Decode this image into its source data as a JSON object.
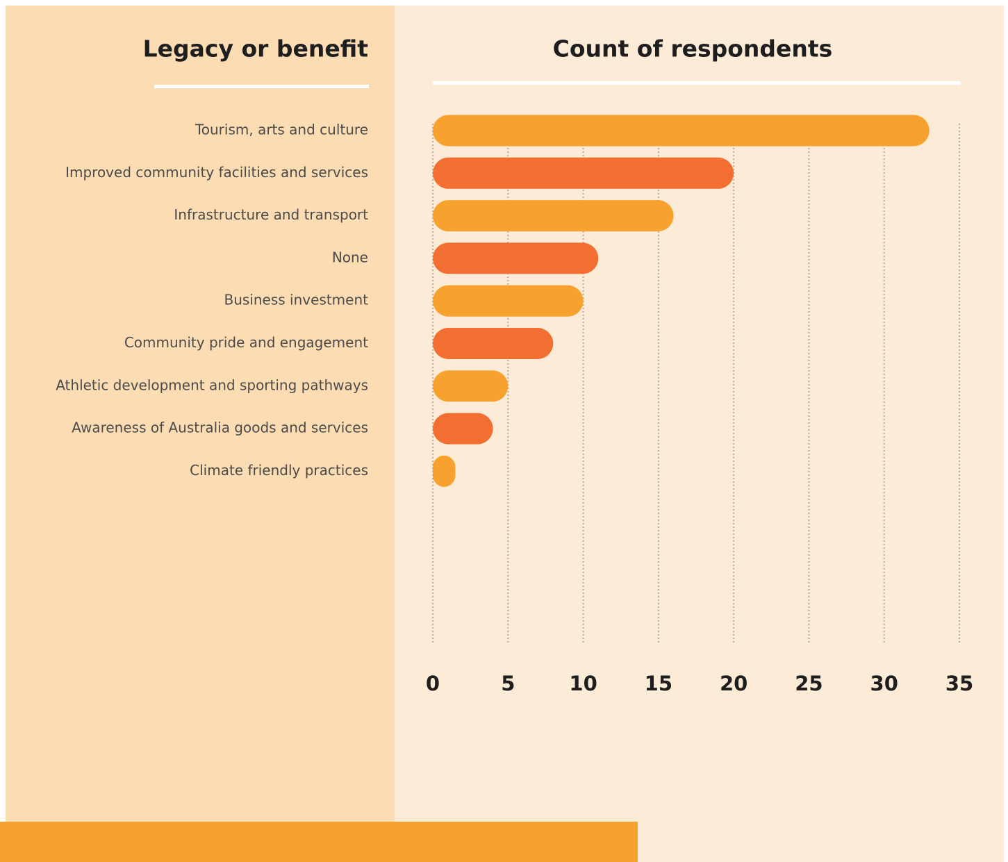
{
  "chart_data": {
    "type": "bar",
    "orientation": "horizontal",
    "category_header": "Legacy or benefit",
    "title": "Count of respondents",
    "categories": [
      "Tourism, arts and culture",
      "Improved community facilities and services",
      "Infrastructure and transport",
      "None",
      "Business investment",
      "Community pride and engagement",
      "Athletic development and sporting pathways",
      "Awareness of Australia goods and services",
      "Climate friendly practices"
    ],
    "values": [
      33,
      20,
      16,
      11,
      10,
      8,
      5,
      4,
      1.5
    ],
    "colors": [
      "#f7a22e",
      "#f26f31",
      "#f7a22e",
      "#f26f31",
      "#f7a22e",
      "#f26f31",
      "#f7a22e",
      "#f26f31",
      "#f7a22e"
    ],
    "xlim": [
      0,
      35
    ],
    "xticks": [
      0,
      5,
      10,
      15,
      20,
      25,
      30,
      35
    ],
    "grid": true
  }
}
